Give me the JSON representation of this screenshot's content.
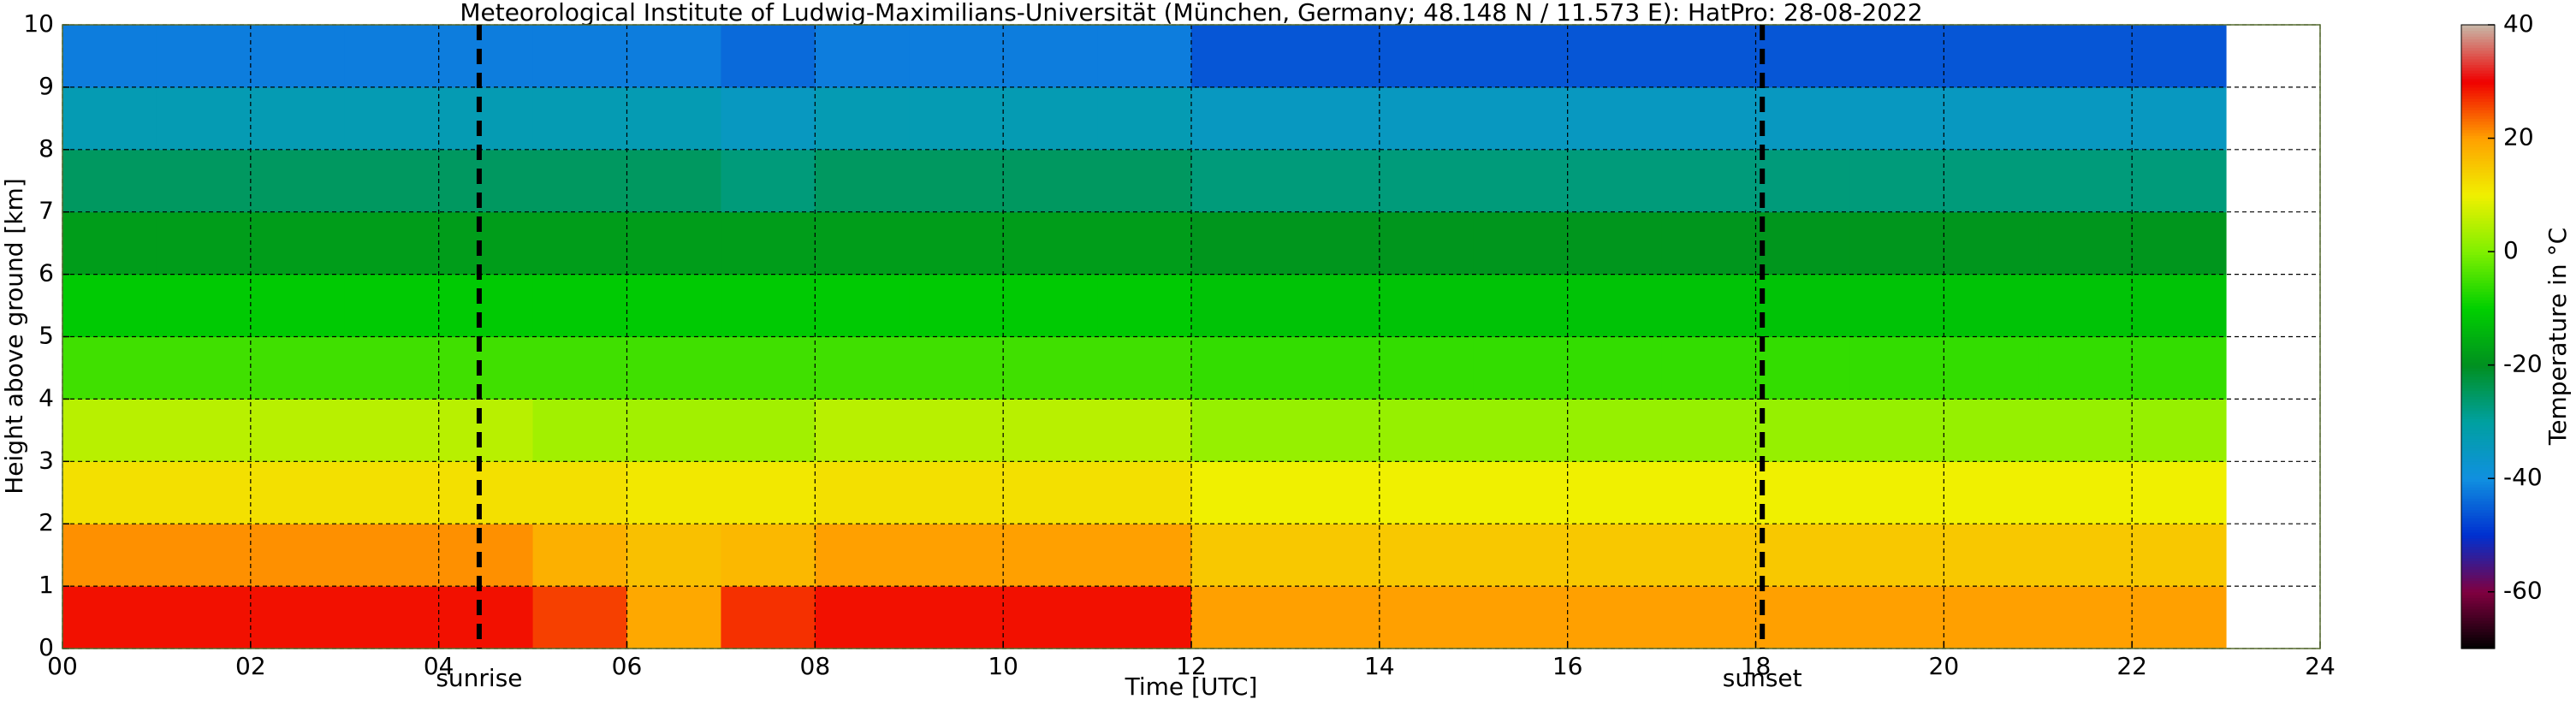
{
  "chart_data": {
    "type": "heatmap",
    "title": "Meteorological Institute of Ludwig-Maximilians-Universität (München, Germany; 48.148 N / 11.573 E):    HatPro: 28-08-2022",
    "x_label": "Time [UTC]",
    "y_label": "Height above ground [km]",
    "colorbar_label": "Temperature in °C",
    "x_bins": [
      0,
      1,
      2,
      3,
      4,
      5,
      6,
      7,
      8,
      9,
      10,
      11,
      12,
      13,
      14,
      15,
      16,
      17,
      18,
      19,
      20,
      21,
      22,
      23
    ],
    "y_bins": [
      0,
      1,
      2,
      3,
      4,
      5,
      6,
      7,
      8,
      9,
      10
    ],
    "values": [
      [
        29,
        29,
        29,
        29,
        29,
        26,
        19,
        27,
        29,
        29,
        29,
        29,
        20,
        20,
        20,
        20,
        20,
        20,
        20,
        20,
        20,
        20,
        20
      ],
      [
        21,
        21,
        21,
        21,
        21,
        18,
        16,
        17,
        20,
        20,
        20,
        20,
        15,
        15,
        15,
        15,
        15,
        15,
        15,
        15,
        15,
        15,
        15
      ],
      [
        12,
        12,
        12,
        12,
        12,
        12,
        11,
        11,
        12,
        12,
        12,
        12,
        10,
        10,
        10,
        10,
        10,
        10,
        10,
        10,
        10,
        10,
        10
      ],
      [
        5,
        5,
        5,
        5,
        5,
        3,
        3,
        3,
        5,
        5,
        5,
        5,
        2,
        2,
        2,
        2,
        2,
        2,
        2,
        2,
        2,
        2,
        2
      ],
      [
        -5,
        -5,
        -5,
        -5,
        -5,
        -5,
        -5,
        -5,
        -5,
        -5,
        -5,
        -5,
        -6,
        -6,
        -6,
        -6,
        -6,
        -6,
        -6,
        -6,
        -6,
        -6,
        -6
      ],
      [
        -11,
        -11,
        -11,
        -11,
        -11,
        -11,
        -11,
        -11,
        -11,
        -11,
        -11,
        -11,
        -12,
        -12,
        -12,
        -12,
        -12,
        -12,
        -12,
        -12,
        -12,
        -12,
        -12
      ],
      [
        -18,
        -18,
        -18,
        -18,
        -18,
        -18,
        -18,
        -18,
        -18,
        -18,
        -18,
        -18,
        -19,
        -19,
        -19,
        -19,
        -19,
        -19,
        -19,
        -19,
        -19,
        -19,
        -19
      ],
      [
        -25,
        -25,
        -25,
        -25,
        -25,
        -25,
        -25,
        -27,
        -25,
        -25,
        -25,
        -25,
        -27,
        -27,
        -27,
        -27,
        -27,
        -27,
        -27,
        -27,
        -27,
        -27,
        -27
      ],
      [
        -33,
        -33,
        -33,
        -33,
        -33,
        -33,
        -33,
        -35,
        -33,
        -33,
        -33,
        -33,
        -35,
        -35,
        -35,
        -35,
        -35,
        -35,
        -35,
        -35,
        -35,
        -35,
        -35
      ],
      [
        -42,
        -42,
        -42,
        -42,
        -42,
        -42,
        -42,
        -44,
        -42,
        -42,
        -42,
        -42,
        -46,
        -46,
        -46,
        -46,
        -46,
        -46,
        -46,
        -46,
        -46,
        -46,
        -46
      ]
    ],
    "colormap": [
      "#000000",
      "#800040",
      "#0030d0",
      "#1090e0",
      "#00a0a0",
      "#009020",
      "#00d000",
      "#80f000",
      "#f0f000",
      "#ffa000",
      "#f00000",
      "#c8b8a8"
    ],
    "clim": [
      -70,
      40
    ],
    "cticks": [
      -60,
      -40,
      -20,
      0,
      20,
      40
    ],
    "xlim": [
      0,
      24
    ],
    "xticks": [
      {
        "value": 0,
        "label": "00"
      },
      {
        "value": 2,
        "label": "02"
      },
      {
        "value": 4,
        "label": "04"
      },
      {
        "value": 6,
        "label": "06"
      },
      {
        "value": 8,
        "label": "08"
      },
      10,
      12,
      14,
      16,
      18,
      20,
      22,
      24
    ],
    "ylim": [
      0,
      10
    ],
    "yticks": [
      0,
      1,
      2,
      3,
      4,
      5,
      6,
      7,
      8,
      9,
      10
    ],
    "grid": true,
    "annotations": [
      {
        "x": 4.43,
        "label": "sunrise"
      },
      {
        "x": 18.07,
        "label": "sunset"
      }
    ]
  }
}
